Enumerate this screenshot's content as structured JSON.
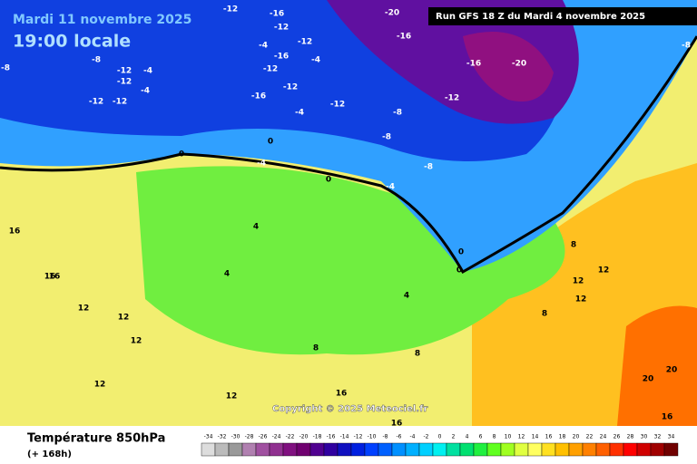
{
  "header": {
    "date": "Mardi 11 novembre 2025",
    "time": "19:00 locale",
    "run": "Run GFS 18 Z du Mardi 4 novembre 2025",
    "copyright": "Copyright © 2025 Meteociel.fr"
  },
  "legend": {
    "title": "Température 850hPa",
    "lead": "(+ 168h)",
    "scale": [
      {
        "value": -34,
        "color": "#dddddd"
      },
      {
        "value": -32,
        "color": "#bbbbbb"
      },
      {
        "value": -30,
        "color": "#999999"
      },
      {
        "value": -28,
        "color": "#b080b0"
      },
      {
        "value": -26,
        "color": "#a050a0"
      },
      {
        "value": -24,
        "color": "#903090"
      },
      {
        "value": -22,
        "color": "#801080"
      },
      {
        "value": -20,
        "color": "#700070"
      },
      {
        "value": -18,
        "color": "#500090"
      },
      {
        "value": -16,
        "color": "#3000a0"
      },
      {
        "value": -14,
        "color": "#1010c0"
      },
      {
        "value": -12,
        "color": "#0020e0"
      },
      {
        "value": -10,
        "color": "#0040ff"
      },
      {
        "value": -8,
        "color": "#0060ff"
      },
      {
        "value": -6,
        "color": "#0090ff"
      },
      {
        "value": -4,
        "color": "#00b0ff"
      },
      {
        "value": -2,
        "color": "#00d0ff"
      },
      {
        "value": 0,
        "color": "#00f0f0"
      },
      {
        "value": 2,
        "color": "#00e0a0"
      },
      {
        "value": 4,
        "color": "#00e070"
      },
      {
        "value": 6,
        "color": "#20f040"
      },
      {
        "value": 8,
        "color": "#60ff20"
      },
      {
        "value": 10,
        "color": "#a0ff20"
      },
      {
        "value": 12,
        "color": "#e0ff40"
      },
      {
        "value": 14,
        "color": "#ffff60"
      },
      {
        "value": 16,
        "color": "#ffe020"
      },
      {
        "value": 18,
        "color": "#ffc000"
      },
      {
        "value": 20,
        "color": "#ffa000"
      },
      {
        "value": 22,
        "color": "#ff8000"
      },
      {
        "value": 24,
        "color": "#ff6000"
      },
      {
        "value": 26,
        "color": "#ff3000"
      },
      {
        "value": 28,
        "color": "#ff0000"
      },
      {
        "value": 30,
        "color": "#d00000"
      },
      {
        "value": 32,
        "color": "#a00000"
      },
      {
        "value": 34,
        "color": "#700000"
      }
    ]
  },
  "map_labels": [
    -16,
    -12,
    -4,
    -8,
    -12,
    -12,
    -4,
    -4,
    -12,
    -12,
    -8,
    -16,
    -12,
    -12,
    -12,
    -4,
    -16,
    -12,
    -4,
    -12,
    -8,
    -16,
    -20,
    -20,
    -16,
    -12,
    -8,
    -8,
    -8,
    -4,
    0,
    0,
    -4,
    0,
    0,
    0,
    4,
    4,
    4,
    8,
    8,
    12,
    12,
    12,
    12,
    16,
    16,
    16,
    12,
    16,
    16,
    20,
    20,
    16,
    12,
    8,
    8,
    12,
    12
  ]
}
